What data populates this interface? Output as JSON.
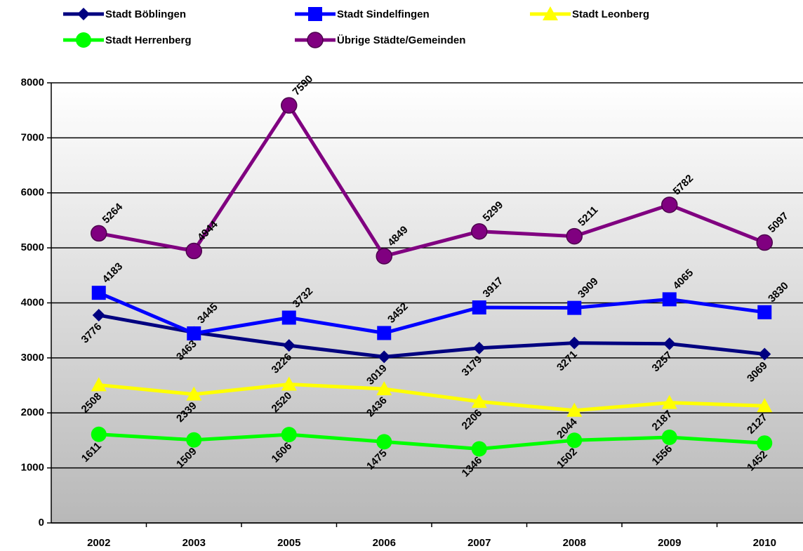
{
  "chart_data": {
    "type": "line",
    "categories": [
      "2002",
      "2003",
      "2005",
      "2006",
      "2007",
      "2008",
      "2009",
      "2010"
    ],
    "series": [
      {
        "name": "Stadt Böblingen",
        "color": "#000080",
        "marker": "diamond",
        "values": [
          3776,
          3463,
          3226,
          3019,
          3179,
          3271,
          3257,
          3069
        ]
      },
      {
        "name": "Stadt Sindelfingen",
        "color": "#0000FF",
        "marker": "square",
        "values": [
          4183,
          3445,
          3732,
          3452,
          3917,
          3909,
          4065,
          3830
        ]
      },
      {
        "name": "Stadt Leonberg",
        "color": "#FFFF00",
        "marker": "triangle",
        "values": [
          2508,
          2339,
          2520,
          2436,
          2206,
          2044,
          2187,
          2127
        ]
      },
      {
        "name": "Stadt Herrenberg",
        "color": "#00FF00",
        "marker": "circle",
        "values": [
          1611,
          1509,
          1606,
          1475,
          1346,
          1502,
          1556,
          1452
        ]
      },
      {
        "name": "Übrige Städte/Gemeinden",
        "color": "#800080",
        "marker": "circle",
        "values": [
          5264,
          4944,
          7590,
          4849,
          5299,
          5211,
          5782,
          5097
        ]
      }
    ],
    "ylim": [
      0,
      8000
    ],
    "yticks": [
      0,
      1000,
      2000,
      3000,
      4000,
      5000,
      6000,
      7000,
      8000
    ],
    "grid": true,
    "legend": "top"
  }
}
